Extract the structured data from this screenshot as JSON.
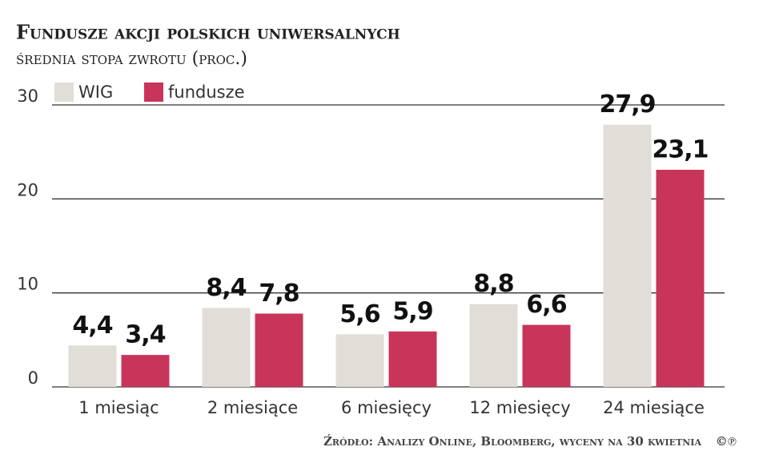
{
  "chart_data": {
    "type": "bar",
    "title": "Fundusze akcji polskich uniwersalnych",
    "subtitle": "średnia stopa zwrotu (proc.)",
    "categories": [
      "1 miesiąc",
      "2 miesiące",
      "6 miesięcy",
      "12 miesięcy",
      "24 miesiące"
    ],
    "series": [
      {
        "name": "WIG",
        "color": "#e0ded7",
        "values": [
          4.4,
          8.4,
          5.6,
          8.8,
          27.9
        ],
        "value_labels": [
          "4,4",
          "8,4",
          "5,6",
          "8,8",
          "27,9"
        ]
      },
      {
        "name": "fundusze",
        "color": "#c9345a",
        "values": [
          3.4,
          7.8,
          5.9,
          6.6,
          23.1
        ],
        "value_labels": [
          "3,4",
          "7,8",
          "5,9",
          "6,6",
          "23,1"
        ]
      }
    ],
    "ylim": [
      0,
      30
    ],
    "yticks": [
      0,
      10,
      20,
      30
    ],
    "grid": true,
    "source": "Źródło: Analizy Online, Bloomberg, wyceny na 30 kwietnia",
    "logo": "©℗"
  }
}
